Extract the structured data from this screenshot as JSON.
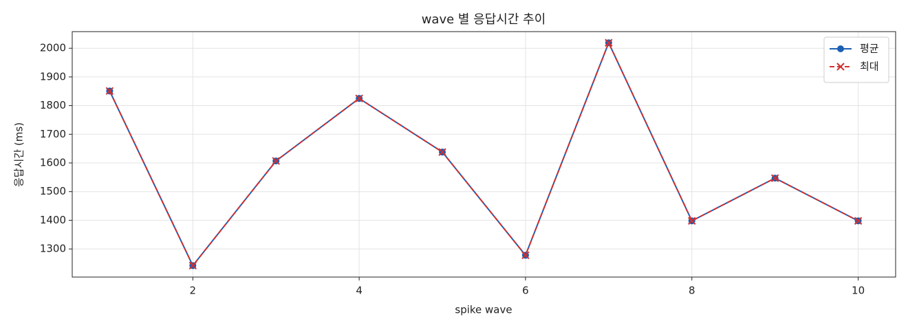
{
  "chart_data": {
    "type": "line",
    "title": "wave 별 응답시간 추이",
    "xlabel": "spike wave",
    "ylabel": "응답시간 (ms)",
    "x": [
      1,
      2,
      3,
      4,
      5,
      6,
      7,
      8,
      9,
      10
    ],
    "series": [
      {
        "name": "평균",
        "color": "#1a5fb4",
        "dash": "solid",
        "marker": "circle",
        "values": [
          1851,
          1242,
          1607,
          1825,
          1638,
          1278,
          2019,
          1398,
          1547,
          1398
        ]
      },
      {
        "name": "최대",
        "color": "#d03030",
        "dash": "dashed",
        "marker": "x",
        "values": [
          1851,
          1242,
          1607,
          1825,
          1638,
          1278,
          2019,
          1398,
          1547,
          1398
        ]
      }
    ],
    "xlim": [
      0.55,
      10.45
    ],
    "xticks": [
      2,
      4,
      6,
      8,
      10
    ],
    "ylim": [
      1202,
      2058
    ],
    "yticks": [
      1300,
      1400,
      1500,
      1600,
      1700,
      1800,
      1900,
      2000
    ],
    "grid": true,
    "legend": "upper right"
  }
}
